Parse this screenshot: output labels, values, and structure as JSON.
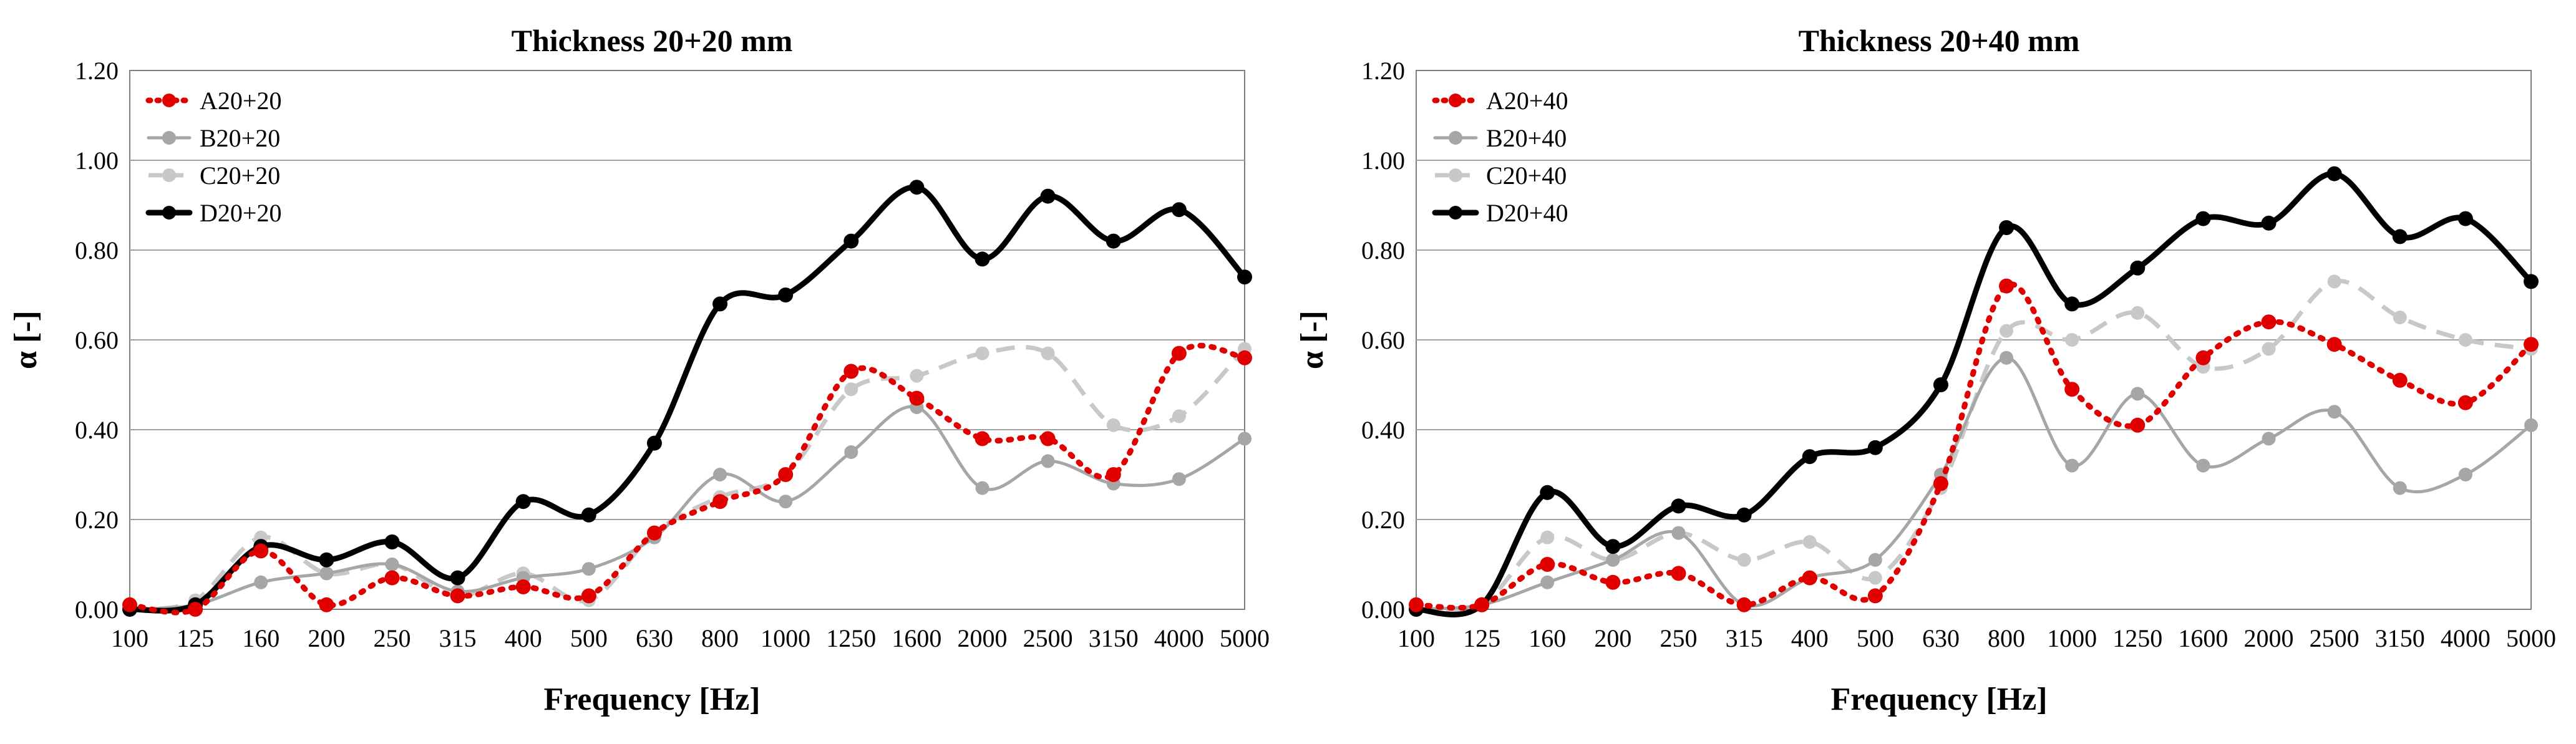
{
  "chart_data": [
    {
      "type": "line",
      "title": "Thickness 20+20 mm",
      "xlabel": "Frequency [Hz]",
      "ylabel": "α [-]",
      "categories": [
        "100",
        "125",
        "160",
        "200",
        "250",
        "315",
        "400",
        "500",
        "630",
        "800",
        "1000",
        "1250",
        "1600",
        "2000",
        "2500",
        "3150",
        "4000",
        "5000"
      ],
      "ylim": [
        0,
        1.2
      ],
      "yticks": [
        "0.00",
        "0.20",
        "0.40",
        "0.60",
        "0.80",
        "1.00",
        "1.20"
      ],
      "grid": true,
      "legend_position": "top-left",
      "series": [
        {
          "name": "A20+20",
          "color": "#e00000",
          "dash": "dotted",
          "values": [
            0.01,
            0.0,
            0.13,
            0.01,
            0.07,
            0.03,
            0.05,
            0.03,
            0.17,
            0.24,
            0.3,
            0.53,
            0.47,
            0.38,
            0.38,
            0.3,
            0.57,
            0.56
          ]
        },
        {
          "name": "B20+20",
          "color": "#a6a6a6",
          "dash": "solid",
          "values": [
            0.0,
            0.01,
            0.06,
            0.08,
            0.1,
            0.04,
            0.07,
            0.09,
            0.16,
            0.3,
            0.24,
            0.35,
            0.45,
            0.27,
            0.33,
            0.28,
            0.29,
            0.38
          ]
        },
        {
          "name": "C20+20",
          "color": "#c8c8c8",
          "dash": "dashed",
          "values": [
            0.0,
            0.02,
            0.16,
            0.08,
            0.1,
            0.03,
            0.08,
            0.02,
            0.17,
            0.25,
            0.3,
            0.49,
            0.52,
            0.57,
            0.57,
            0.41,
            0.43,
            0.58
          ]
        },
        {
          "name": "D20+20",
          "color": "#000000",
          "dash": "solid",
          "values": [
            0.0,
            0.01,
            0.14,
            0.11,
            0.15,
            0.07,
            0.24,
            0.21,
            0.37,
            0.68,
            0.7,
            0.82,
            0.94,
            0.78,
            0.92,
            0.82,
            0.89,
            0.74
          ]
        }
      ]
    },
    {
      "type": "line",
      "title": "Thickness 20+40 mm",
      "xlabel": "Frequency [Hz]",
      "ylabel": "α [-]",
      "categories": [
        "100",
        "125",
        "160",
        "200",
        "250",
        "315",
        "400",
        "500",
        "630",
        "800",
        "1000",
        "1250",
        "1600",
        "2000",
        "2500",
        "3150",
        "4000",
        "5000"
      ],
      "ylim": [
        0,
        1.2
      ],
      "yticks": [
        "0.00",
        "0.20",
        "0.40",
        "0.60",
        "0.80",
        "1.00",
        "1.20"
      ],
      "grid": true,
      "legend_position": "top-left",
      "series": [
        {
          "name": "A20+40",
          "color": "#e00000",
          "dash": "dotted",
          "values": [
            0.01,
            0.01,
            0.1,
            0.06,
            0.08,
            0.01,
            0.07,
            0.03,
            0.28,
            0.72,
            0.49,
            0.41,
            0.56,
            0.64,
            0.59,
            0.51,
            0.46,
            0.59
          ]
        },
        {
          "name": "B20+40",
          "color": "#a6a6a6",
          "dash": "solid",
          "values": [
            0.0,
            0.01,
            0.06,
            0.11,
            0.17,
            0.01,
            0.07,
            0.11,
            0.3,
            0.56,
            0.32,
            0.48,
            0.32,
            0.38,
            0.44,
            0.27,
            0.3,
            0.41
          ]
        },
        {
          "name": "C20+40",
          "color": "#c8c8c8",
          "dash": "dashed",
          "values": [
            0.0,
            0.01,
            0.16,
            0.11,
            0.17,
            0.11,
            0.15,
            0.07,
            0.27,
            0.62,
            0.6,
            0.66,
            0.54,
            0.58,
            0.73,
            0.65,
            0.6,
            0.58
          ]
        },
        {
          "name": "D20+40",
          "color": "#000000",
          "dash": "solid",
          "values": [
            0.0,
            0.01,
            0.26,
            0.14,
            0.23,
            0.21,
            0.34,
            0.36,
            0.5,
            0.85,
            0.68,
            0.76,
            0.87,
            0.86,
            0.97,
            0.83,
            0.87,
            0.73
          ]
        }
      ]
    }
  ]
}
